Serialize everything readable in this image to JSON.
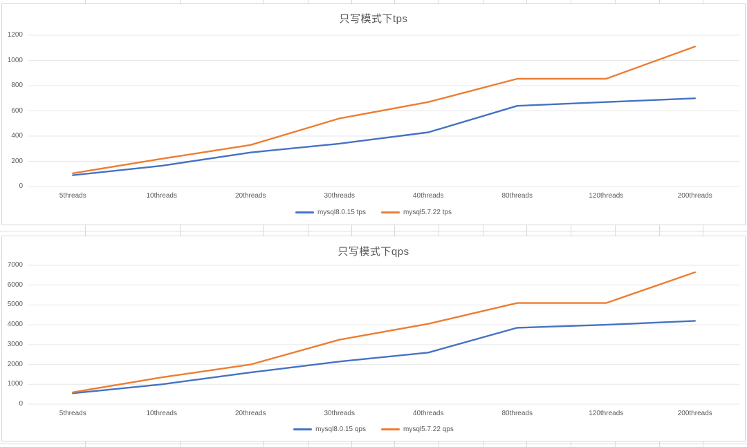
{
  "sheet": {
    "gridline_color": "#d9d9d9",
    "chart_border_color": "#d6d6d6",
    "chart_background": "#ffffff",
    "axis_text_color": "#595959",
    "plot_gridline_color": "#e7e7e7"
  },
  "chart_data": [
    {
      "type": "line",
      "title": "只写模式下tps",
      "categories": [
        "5threads",
        "10threads",
        "20threads",
        "30threads",
        "40threads",
        "80threads",
        "120threads",
        "200threads"
      ],
      "series": [
        {
          "name": "mysql8.0.15 tps",
          "color": "#4472C4",
          "values": [
            90,
            165,
            270,
            340,
            430,
            640,
            670,
            700
          ]
        },
        {
          "name": "mysql5.7.22 tps",
          "color": "#ED7D31",
          "values": [
            105,
            220,
            330,
            540,
            670,
            855,
            855,
            1110
          ]
        }
      ],
      "xlabel": "",
      "ylabel": "",
      "ylim": [
        0,
        1200
      ],
      "ystep": 200,
      "grid": true,
      "legend_position": "bottom"
    },
    {
      "type": "line",
      "title": "只写模式下qps",
      "categories": [
        "5threads",
        "10threads",
        "20threads",
        "30threads",
        "40threads",
        "80threads",
        "120threads",
        "200threads"
      ],
      "series": [
        {
          "name": "mysql8.0.15 qps",
          "color": "#4472C4",
          "values": [
            550,
            1000,
            1600,
            2150,
            2600,
            3850,
            4000,
            4200
          ]
        },
        {
          "name": "mysql5.7.22 qps",
          "color": "#ED7D31",
          "values": [
            600,
            1350,
            2000,
            3250,
            4050,
            5100,
            5100,
            6650
          ]
        }
      ],
      "xlabel": "",
      "ylabel": "",
      "ylim": [
        0,
        7000
      ],
      "ystep": 1000,
      "grid": true,
      "legend_position": "bottom"
    }
  ]
}
